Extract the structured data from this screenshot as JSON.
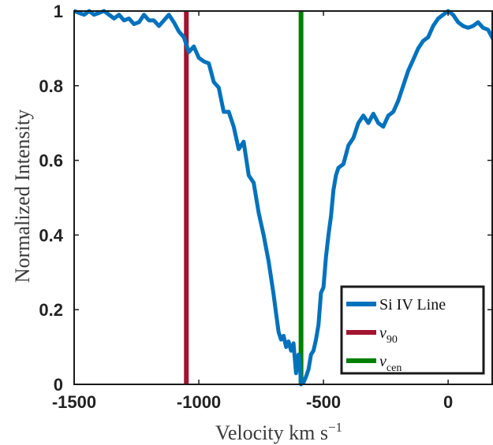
{
  "chart_data": {
    "type": "line",
    "title": "",
    "xlabel": "Velocity km s⁻¹",
    "ylabel": "Normalized Intensity",
    "xlim": [
      -1500,
      180
    ],
    "ylim": [
      0,
      1
    ],
    "x_ticks": [
      -1500,
      -1000,
      -500,
      0
    ],
    "y_ticks": [
      0,
      0.2,
      0.4,
      0.6,
      0.8,
      1
    ],
    "grid": false,
    "legend_position": "bottom-right",
    "series": [
      {
        "name": "Si IV Line",
        "color": "#0072BD",
        "x": [
          -1500,
          -1480,
          -1460,
          -1440,
          -1420,
          -1400,
          -1380,
          -1360,
          -1340,
          -1320,
          -1300,
          -1280,
          -1260,
          -1240,
          -1220,
          -1200,
          -1180,
          -1160,
          -1140,
          -1120,
          -1100,
          -1080,
          -1060,
          -1040,
          -1020,
          -1000,
          -980,
          -960,
          -940,
          -920,
          -900,
          -880,
          -860,
          -840,
          -820,
          -800,
          -780,
          -760,
          -740,
          -720,
          -700,
          -690,
          -680,
          -670,
          -660,
          -650,
          -640,
          -630,
          -620,
          -610,
          -600,
          -595,
          -590,
          -585,
          -580,
          -570,
          -560,
          -550,
          -540,
          -530,
          -520,
          -510,
          -500,
          -490,
          -480,
          -470,
          -460,
          -450,
          -440,
          -420,
          -400,
          -380,
          -360,
          -340,
          -320,
          -300,
          -280,
          -260,
          -240,
          -220,
          -200,
          -180,
          -160,
          -140,
          -120,
          -100,
          -80,
          -60,
          -40,
          -20,
          0,
          20,
          40,
          60,
          80,
          100,
          120,
          140,
          160,
          180
        ],
        "y": [
          1.0,
          0.995,
          0.99,
          1.0,
          0.99,
          0.995,
          1.0,
          0.99,
          0.98,
          0.99,
          0.975,
          0.98,
          0.965,
          0.97,
          0.99,
          0.975,
          0.975,
          0.96,
          0.975,
          0.99,
          0.97,
          0.945,
          0.93,
          0.89,
          0.905,
          0.875,
          0.865,
          0.86,
          0.81,
          0.795,
          0.73,
          0.73,
          0.69,
          0.63,
          0.65,
          0.56,
          0.54,
          0.46,
          0.4,
          0.33,
          0.24,
          0.19,
          0.14,
          0.12,
          0.13,
          0.1,
          0.115,
          0.09,
          0.11,
          0.03,
          0.08,
          0.06,
          0.0,
          0.01,
          0.005,
          0.02,
          0.04,
          0.08,
          0.09,
          0.12,
          0.16,
          0.245,
          0.26,
          0.34,
          0.4,
          0.45,
          0.52,
          0.56,
          0.58,
          0.59,
          0.64,
          0.66,
          0.7,
          0.72,
          0.7,
          0.725,
          0.7,
          0.69,
          0.72,
          0.73,
          0.76,
          0.8,
          0.84,
          0.87,
          0.9,
          0.92,
          0.93,
          0.96,
          0.98,
          0.99,
          1.0,
          0.99,
          0.97,
          0.96,
          0.955,
          0.96,
          0.97,
          0.955,
          0.95,
          0.925
        ]
      }
    ],
    "vlines": [
      {
        "name": "v₉₀",
        "label_main": "v",
        "label_sub": "90",
        "x": -1050,
        "color": "#A2142F"
      },
      {
        "name": "v_cen",
        "label_main": "v",
        "label_sub": "cen",
        "x": -590,
        "color": "#008000"
      }
    ]
  },
  "legend": {
    "entries": [
      {
        "name": "legend-item-si-iv",
        "main": "Si IV Line",
        "sub": "",
        "color": "#0072BD"
      },
      {
        "name": "legend-item-v90",
        "main": "v",
        "sub": "90",
        "color": "#A2142F"
      },
      {
        "name": "legend-item-vcen",
        "main": "v",
        "sub": "cen",
        "color": "#008000"
      }
    ]
  }
}
